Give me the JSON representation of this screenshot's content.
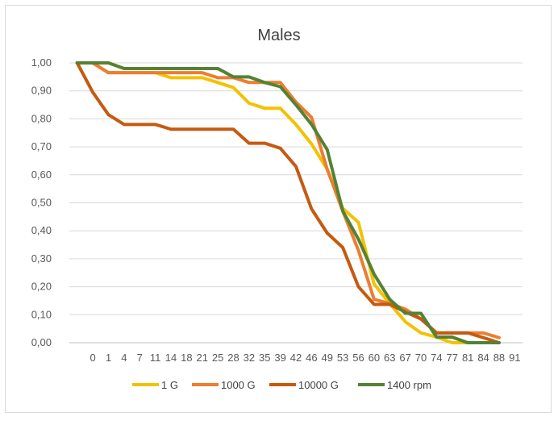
{
  "chart_data": {
    "type": "line",
    "title": "Males",
    "xlabel": "",
    "ylabel": "",
    "ylim": [
      0,
      1
    ],
    "ytick_step": 0.1,
    "grid": true,
    "legend_position": "bottom",
    "x": [
      "",
      "0",
      "1",
      "4",
      "7",
      "11",
      "14",
      "18",
      "21",
      "25",
      "28",
      "32",
      "35",
      "39",
      "42",
      "46",
      "49",
      "53",
      "56",
      "60",
      "63",
      "67",
      "70",
      "74",
      "77",
      "81",
      "84",
      "88",
      "91"
    ],
    "series": [
      {
        "name": "1 G",
        "color": "#f2c200",
        "values": [
          1.0,
          1.0,
          0.965,
          0.965,
          0.965,
          0.965,
          0.947,
          0.947,
          0.947,
          0.93,
          0.912,
          0.856,
          0.838,
          0.838,
          0.78,
          0.71,
          0.62,
          0.48,
          0.43,
          0.21,
          0.14,
          0.075,
          0.035,
          0.02,
          0.0,
          0.0,
          0.0,
          0.0,
          null
        ]
      },
      {
        "name": "1000 G",
        "color": "#ed7d31",
        "values": [
          1.0,
          1.0,
          0.965,
          0.965,
          0.965,
          0.965,
          0.965,
          0.965,
          0.965,
          0.947,
          0.947,
          0.93,
          0.93,
          0.93,
          0.86,
          0.805,
          0.62,
          0.47,
          0.33,
          0.155,
          0.14,
          0.12,
          0.085,
          0.035,
          0.035,
          0.035,
          0.035,
          0.018,
          null
        ]
      },
      {
        "name": "10000 G",
        "color": "#c55a11",
        "values": [
          1.0,
          0.895,
          0.815,
          0.78,
          0.78,
          0.78,
          0.763,
          0.763,
          0.763,
          0.763,
          0.763,
          0.713,
          0.713,
          0.695,
          0.63,
          0.478,
          0.392,
          0.34,
          0.2,
          0.137,
          0.137,
          0.11,
          0.085,
          0.035,
          0.035,
          0.035,
          0.018,
          0.0,
          null
        ]
      },
      {
        "name": "1400 rpm",
        "color": "#548235",
        "values": [
          1.0,
          1.0,
          1.0,
          0.98,
          0.98,
          0.98,
          0.98,
          0.98,
          0.98,
          0.98,
          0.95,
          0.95,
          0.93,
          0.915,
          0.85,
          0.78,
          0.69,
          0.47,
          0.37,
          0.245,
          0.155,
          0.105,
          0.105,
          0.02,
          0.02,
          0.0,
          0.0,
          0.0,
          null
        ]
      }
    ]
  }
}
